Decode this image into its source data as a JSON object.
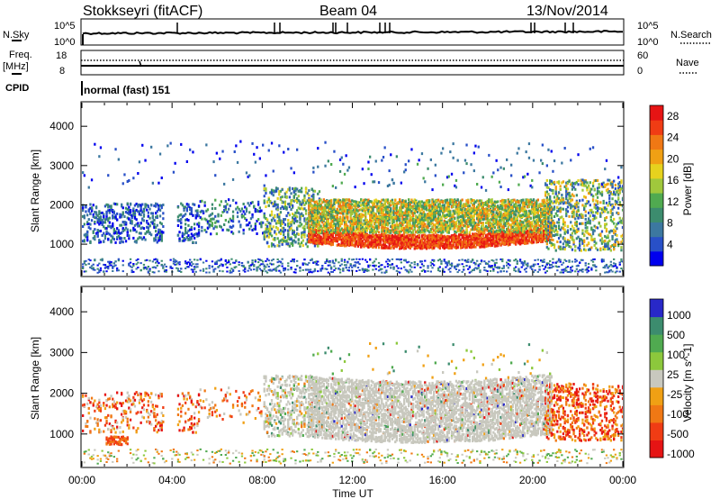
{
  "header": {
    "station": "Stokkseyri (fitACF)",
    "beam": "Beam 04",
    "date": "13/Nov/2014"
  },
  "noise_panel": {
    "left_label": "N.Sky",
    "right_label": "N.Search",
    "left_ticks": [
      "10^5",
      "10^0"
    ],
    "right_ticks": [
      "10^5",
      "10^0"
    ]
  },
  "freq_panel": {
    "left_label_line1": "Freq.",
    "left_label_line2": "[MHz]",
    "right_label": "Nave",
    "left_ticks": [
      "18",
      "8"
    ],
    "right_ticks": [
      "60",
      "0"
    ],
    "cpid_label": "CPID",
    "cpid_value": "normal (fast) 151"
  },
  "colors": {
    "power_scale": [
      "#0000ee",
      "#2850c8",
      "#3c78a0",
      "#3c8c6e",
      "#50aa50",
      "#a0c83c",
      "#e6d21e",
      "#f0a014",
      "#f07814",
      "#f03c14",
      "#e61414"
    ],
    "velocity_scale": [
      "#2828c8",
      "#3c8c6e",
      "#50aa50",
      "#8cc83c",
      "#c8c8be",
      "#f0a014",
      "#f07814",
      "#f03c14",
      "#e61414"
    ]
  },
  "chart_data": [
    {
      "type": "heatmap",
      "title": "",
      "xlabel": "",
      "ylabel": "Slant Range [km]",
      "x_ticks": [
        "00:00",
        "04:00",
        "08:00",
        "12:00",
        "16:00",
        "20:00",
        "00:00"
      ],
      "x_range_hours": [
        0,
        24
      ],
      "y_ticks": [
        1000,
        2000,
        3000,
        4000
      ],
      "ylim": [
        200,
        4600
      ],
      "colorbar_label": "Power [dB]",
      "colorbar_ticks": [
        4,
        8,
        12,
        16,
        20,
        24,
        28
      ],
      "colorbar_range": [
        0,
        30
      ],
      "features": [
        {
          "hours": [
            10.5,
            19.0
          ],
          "range_km": [
            900,
            1250
          ],
          "value": "28"
        },
        {
          "hours": [
            10.0,
            20.5
          ],
          "range_km": [
            1300,
            2100
          ],
          "value": "16-20"
        },
        {
          "hours": [
            0.0,
            5.0
          ],
          "range_km": [
            1000,
            2000
          ],
          "value": "4-8"
        },
        {
          "hours": [
            8.0,
            10.0
          ],
          "range_km": [
            1000,
            2400
          ],
          "value": "8-16"
        },
        {
          "hours": [
            21.0,
            24.0
          ],
          "range_km": [
            700,
            2600
          ],
          "value": "8-20"
        }
      ]
    },
    {
      "type": "heatmap",
      "title": "",
      "xlabel": "Time UT",
      "ylabel": "Slant Range [km]",
      "x_ticks": [
        "00:00",
        "04:00",
        "08:00",
        "12:00",
        "16:00",
        "20:00",
        "00:00"
      ],
      "x_range_hours": [
        0,
        24
      ],
      "y_ticks": [
        1000,
        2000,
        3000,
        4000
      ],
      "ylim": [
        200,
        4600
      ],
      "colorbar_label": "Velocity [m s^-1]",
      "colorbar_ticks": [
        1000,
        500,
        100,
        25,
        -25,
        -100,
        -500,
        -1000
      ],
      "features": [
        {
          "hours": [
            8.0,
            20.5
          ],
          "range_km": [
            700,
            2300
          ],
          "value": "ground scatter (grey)"
        },
        {
          "hours": [
            0.0,
            5.0
          ],
          "range_km": [
            1000,
            2000
          ],
          "value": "-100 to -500"
        },
        {
          "hours": [
            20.5,
            24.0
          ],
          "range_km": [
            900,
            2200
          ],
          "value": "-500 to -1000"
        }
      ]
    }
  ]
}
